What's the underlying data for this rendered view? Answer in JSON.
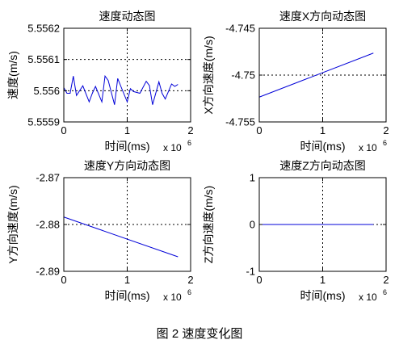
{
  "chart_data": [
    {
      "type": "line",
      "title": "速度动态图",
      "xlabel": "时间(ms)",
      "ylabel": "速度(m/s)",
      "x_multiplier": "x 10",
      "x_exponent": "6",
      "xlim": [
        0,
        2
      ],
      "ylim": [
        5.5559,
        5.5562
      ],
      "x_ticks": [
        0,
        1,
        2
      ],
      "x_tick_labels": [
        "0",
        "1",
        "2"
      ],
      "y_ticks": [
        5.5559,
        5.556,
        5.5561,
        5.5562
      ],
      "y_tick_labels": [
        "5.5559",
        "5.556",
        "5.5561",
        "5.5562"
      ],
      "grid": true,
      "series": [
        {
          "color": "#0000d8",
          "x": [
            0,
            0.05,
            0.1,
            0.15,
            0.2,
            0.3,
            0.4,
            0.45,
            0.5,
            0.6,
            0.65,
            0.7,
            0.8,
            0.85,
            0.9,
            1.0,
            1.05,
            1.1,
            1.2,
            1.3,
            1.35,
            1.4,
            1.5,
            1.55,
            1.6,
            1.7,
            1.75,
            1.8
          ],
          "y": [
            5.55601,
            5.5559918,
            5.5559918,
            5.5560468,
            5.5559845,
            5.5560157,
            5.5559643,
            5.5559918,
            5.5560138,
            5.5559643,
            5.5560468,
            5.556033,
            5.5559551,
            5.5560393,
            5.5560138,
            5.5559643,
            5.5560065,
            5.5559973,
            5.5559918,
            5.5560301,
            5.5560165,
            5.5559551,
            5.5560285,
            5.5559918,
            5.5559735,
            5.5560216,
            5.5560138,
            5.55602
          ]
        }
      ]
    },
    {
      "type": "line",
      "title": "速度X方向动态图",
      "xlabel": "时间(ms)",
      "ylabel": "X方向速度(m/s)",
      "x_multiplier": "x 10",
      "x_exponent": "6",
      "xlim": [
        0,
        2
      ],
      "ylim": [
        -4.755,
        -4.745
      ],
      "x_ticks": [
        0,
        1,
        2
      ],
      "x_tick_labels": [
        "0",
        "1",
        "2"
      ],
      "y_ticks": [
        -4.755,
        -4.75,
        -4.745
      ],
      "y_tick_labels": [
        "-4.755",
        "-4.75",
        "-4.745"
      ],
      "grid": true,
      "series": [
        {
          "color": "#0000d8",
          "x": [
            0,
            1.8
          ],
          "y": [
            -4.75235,
            -4.74765
          ]
        }
      ]
    },
    {
      "type": "line",
      "title": "速度Y方向动态图",
      "xlabel": "时间(ms)",
      "ylabel": "Y方向速度(m/s)",
      "x_multiplier": "x 10",
      "x_exponent": "6",
      "xlim": [
        0,
        2
      ],
      "ylim": [
        -2.89,
        -2.87
      ],
      "x_ticks": [
        0,
        1,
        2
      ],
      "x_tick_labels": [
        "0",
        "1",
        "2"
      ],
      "y_ticks": [
        -2.89,
        -2.88,
        -2.87
      ],
      "y_tick_labels": [
        "-2.89",
        "-2.88",
        "-2.87"
      ],
      "grid": true,
      "series": [
        {
          "color": "#0000d8",
          "x": [
            0,
            1.8
          ],
          "y": [
            -2.8784,
            -2.8869
          ]
        }
      ]
    },
    {
      "type": "line",
      "title": "速度Z方向动态图",
      "xlabel": "时间(ms)",
      "ylabel": "Z方向速度(m/s)",
      "x_multiplier": "x 10",
      "x_exponent": "6",
      "xlim": [
        0,
        2
      ],
      "ylim": [
        -1,
        1
      ],
      "x_ticks": [
        0,
        1,
        2
      ],
      "x_tick_labels": [
        "0",
        "1",
        "2"
      ],
      "y_ticks": [
        -1,
        0,
        1
      ],
      "y_tick_labels": [
        "-1",
        "0",
        "1"
      ],
      "grid": true,
      "series": [
        {
          "color": "#0000d8",
          "x": [
            0,
            1.8
          ],
          "y": [
            0,
            0
          ]
        }
      ]
    }
  ],
  "caption": "图 2  速度变化图"
}
